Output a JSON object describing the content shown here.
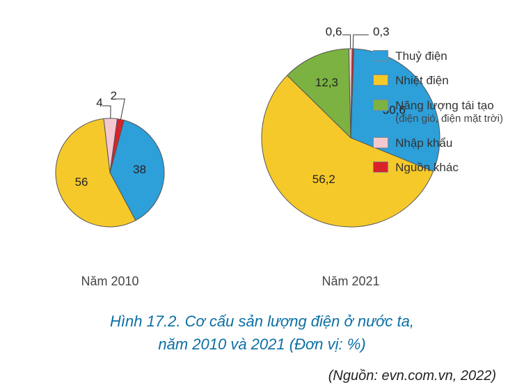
{
  "colors": {
    "thuy_dien": "#2d9fd9",
    "nhiet_dien": "#f6c92a",
    "tai_tao": "#7bb241",
    "nhap_khau": "#f5c8d0",
    "nguon_khac": "#d8232a",
    "stroke": "#555555",
    "title": "#0b6fa4"
  },
  "legend": [
    {
      "key": "thuy_dien",
      "label": "Thuỷ điện"
    },
    {
      "key": "nhiet_dien",
      "label": "Nhiệt điện"
    },
    {
      "key": "tai_tao",
      "label": "Năng lượng tái tạo",
      "sub": "(điện gió, điện mặt trời)"
    },
    {
      "key": "nhap_khau",
      "label": "Nhập khẩu"
    },
    {
      "key": "nguon_khac",
      "label": "Nguồn khác"
    }
  ],
  "charts": [
    {
      "id": "2010",
      "label": "Năm 2010",
      "radius": 78,
      "start_deg": 15,
      "slices": [
        {
          "key": "thuy_dien",
          "value": 38,
          "label": "38",
          "label_r": 0.55
        },
        {
          "key": "nhiet_dien",
          "value": 56,
          "label": "56",
          "label_r": 0.55
        },
        {
          "key": "nhap_khau",
          "value": 4,
          "label": "4",
          "leader": true,
          "leader_out": 18,
          "label_off_y": -4
        },
        {
          "key": "nguon_khac",
          "value": 2,
          "label": "2",
          "leader": true,
          "leader_out": 30,
          "label_off_y": -4
        }
      ]
    },
    {
      "id": "2021",
      "label": "Năm 2021",
      "radius": 128,
      "start_deg": 2,
      "slices": [
        {
          "key": "thuy_dien",
          "value": 30.6,
          "label": "30,6",
          "label_r": 0.58
        },
        {
          "key": "nhiet_dien",
          "value": 56.2,
          "label": "56,2",
          "label_r": 0.55
        },
        {
          "key": "tai_tao",
          "value": 12.3,
          "label": "12,3",
          "label_r": 0.68
        },
        {
          "key": "nhap_khau",
          "value": 0.6,
          "label": "0,6",
          "leader": true,
          "leader_out": 20,
          "label_off_x": -8,
          "label_off_y": -4
        },
        {
          "key": "nguon_khac",
          "value": 0.3,
          "label": "0,3",
          "leader": true,
          "leader_out": 20,
          "leader_side": "right",
          "label_off_x": 14,
          "label_off_y": -4
        }
      ]
    }
  ],
  "caption_line1": "Hình 17.2. Cơ cấu sản lượng điện ở nước ta,",
  "caption_line2": "năm 2010 và 2021 (Đơn vị: %)",
  "source": "(Nguồn: evn.com.vn, 2022)"
}
